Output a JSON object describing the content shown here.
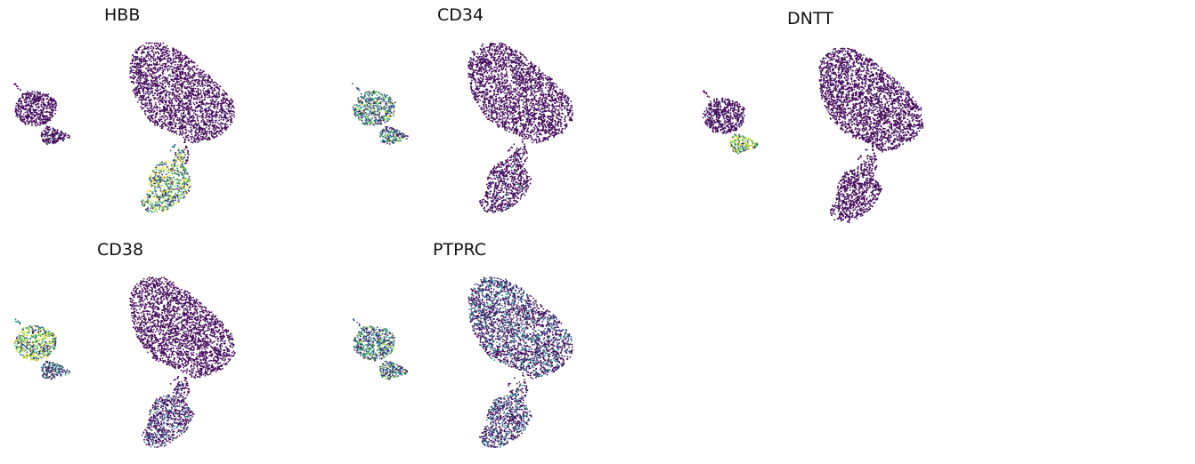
{
  "figure": {
    "panels": [
      {
        "title": "HBB"
      },
      {
        "title": "CD34"
      },
      {
        "title": "DNTT"
      },
      {
        "title": "CD38"
      },
      {
        "title": "PTPRC"
      }
    ]
  },
  "chart_data": [
    {
      "type": "scatter",
      "title": "HBB",
      "colormap": [
        "#440154",
        "#3b528b",
        "#21918c",
        "#5ec962",
        "#fde725"
      ],
      "clusters": [
        {
          "name": "large",
          "expression": 0.0
        },
        {
          "name": "left_upper",
          "expression": 0.0
        },
        {
          "name": "left_lower",
          "expression": 0.02
        },
        {
          "name": "bottom",
          "expression": 0.68
        }
      ]
    },
    {
      "type": "scatter",
      "title": "CD34",
      "colormap": [
        "#440154",
        "#3b528b",
        "#21918c",
        "#5ec962",
        "#fde725"
      ],
      "clusters": [
        {
          "name": "large",
          "expression": 0.0
        },
        {
          "name": "left_upper",
          "expression": 0.5
        },
        {
          "name": "left_lower",
          "expression": 0.45
        },
        {
          "name": "bottom",
          "expression": 0.02
        }
      ]
    },
    {
      "type": "scatter",
      "title": "DNTT",
      "colormap": [
        "#440154",
        "#3b528b",
        "#21918c",
        "#5ec962",
        "#fde725"
      ],
      "clusters": [
        {
          "name": "large",
          "expression": 0.0
        },
        {
          "name": "left_upper",
          "expression": 0.02
        },
        {
          "name": "left_lower",
          "expression": 0.82
        },
        {
          "name": "bottom",
          "expression": 0.0
        }
      ]
    },
    {
      "type": "scatter",
      "title": "CD38",
      "colormap": [
        "#440154",
        "#3b528b",
        "#21918c",
        "#5ec962",
        "#fde725"
      ],
      "clusters": [
        {
          "name": "large",
          "expression": 0.0
        },
        {
          "name": "left_upper",
          "expression": 0.75
        },
        {
          "name": "left_lower",
          "expression": 0.3
        },
        {
          "name": "bottom",
          "expression": 0.03
        }
      ]
    },
    {
      "type": "scatter",
      "title": "PTPRC",
      "colormap": [
        "#440154",
        "#3b528b",
        "#21918c",
        "#5ec962",
        "#fde725"
      ],
      "clusters": [
        {
          "name": "large",
          "expression": 0.1
        },
        {
          "name": "left_upper",
          "expression": 0.48
        },
        {
          "name": "left_lower",
          "expression": 0.45
        },
        {
          "name": "bottom",
          "expression": 0.15
        }
      ]
    }
  ]
}
